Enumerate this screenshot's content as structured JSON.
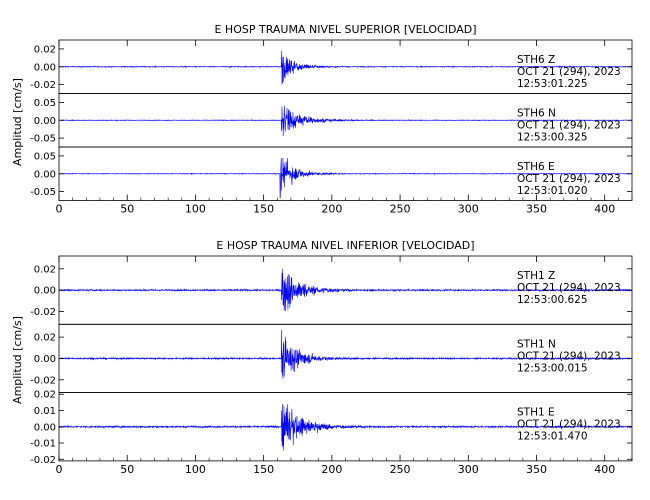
{
  "chart_data": [
    {
      "type": "line",
      "title": "E HOSP TRAUMA NIVEL SUPERIOR [VELOCIDAD]",
      "ylabel": "Amplitud [cm/s]",
      "xlim": [
        0,
        420
      ],
      "x_ticks": [
        "0",
        "50",
        "100",
        "150",
        "200",
        "250",
        "300",
        "350",
        "400"
      ],
      "series": [
        {
          "name": "STH6   Z",
          "date": "OCT 21 (294), 2023",
          "time": "12:53:01.225",
          "ylim": [
            -0.03,
            0.03
          ],
          "y_ticks": [
            0.02,
            0.0,
            -0.02
          ],
          "y_tick_labels": [
            "0.02",
            "0.00",
            "-0.02"
          ],
          "noise_amplitude": 0.0008,
          "event_onset": 163,
          "peak_amplitude": 0.028,
          "decay_seconds": 16,
          "color": "#0000ff"
        },
        {
          "name": "STH6   N",
          "date": "OCT 21 (294), 2023",
          "time": "12:53:00.325",
          "ylim": [
            -0.075,
            0.075
          ],
          "y_ticks": [
            0.05,
            0.0,
            -0.05
          ],
          "y_tick_labels": [
            "0.05",
            "0.00",
            "-0.05"
          ],
          "noise_amplitude": 0.0015,
          "event_onset": 163,
          "peak_amplitude": 0.06,
          "decay_seconds": 24,
          "color": "#0000ff"
        },
        {
          "name": "STH6   E",
          "date": "OCT 21 (294), 2023",
          "time": "12:53:01.020",
          "ylim": [
            -0.075,
            0.075
          ],
          "y_ticks": [
            0.05,
            0.0,
            -0.05
          ],
          "y_tick_labels": [
            "0.05",
            "0.00",
            "-0.05"
          ],
          "noise_amplitude": 0.0015,
          "event_onset": 162,
          "peak_amplitude": 0.07,
          "decay_seconds": 18,
          "color": "#0000ff"
        }
      ]
    },
    {
      "type": "line",
      "title": "E HOSP TRAUMA NIVEL INFERIOR [VELOCIDAD]",
      "ylabel": "Amplitud [cm/s]",
      "xlim": [
        0,
        420
      ],
      "x_ticks": [
        "0",
        "50",
        "100",
        "150",
        "200",
        "250",
        "300",
        "350",
        "400"
      ],
      "series": [
        {
          "name": "STH1   Z",
          "date": "OCT 21 (294), 2023",
          "time": "12:53:00.625",
          "ylim": [
            -0.032,
            0.032
          ],
          "y_ticks": [
            0.02,
            0.0,
            -0.02
          ],
          "y_tick_labels": [
            "0.02",
            "0.00",
            "-0.02"
          ],
          "noise_amplitude": 0.0012,
          "event_onset": 163,
          "peak_amplitude": 0.03,
          "decay_seconds": 24,
          "color": "#0000ff"
        },
        {
          "name": "STH1   N",
          "date": "OCT 21 (294), 2023",
          "time": "12:53:00.015",
          "ylim": [
            -0.032,
            0.032
          ],
          "y_ticks": [
            0.02,
            0.0,
            -0.02
          ],
          "y_tick_labels": [
            "0.02",
            "0.00",
            "-0.02"
          ],
          "noise_amplitude": 0.0012,
          "event_onset": 163,
          "peak_amplitude": 0.028,
          "decay_seconds": 22,
          "color": "#0000ff"
        },
        {
          "name": "STH1   E",
          "date": "OCT 21 (294), 2023",
          "time": "12:53:01.470",
          "ylim": [
            -0.021,
            0.021
          ],
          "y_ticks": [
            0.02,
            0.01,
            0.0,
            -0.01,
            -0.02
          ],
          "y_tick_labels": [
            "0.02",
            "0.01",
            "0.00",
            "-0.01",
            "-0.02"
          ],
          "noise_amplitude": 0.0009,
          "event_onset": 163,
          "peak_amplitude": 0.02,
          "decay_seconds": 26,
          "color": "#0000ff"
        }
      ]
    }
  ]
}
